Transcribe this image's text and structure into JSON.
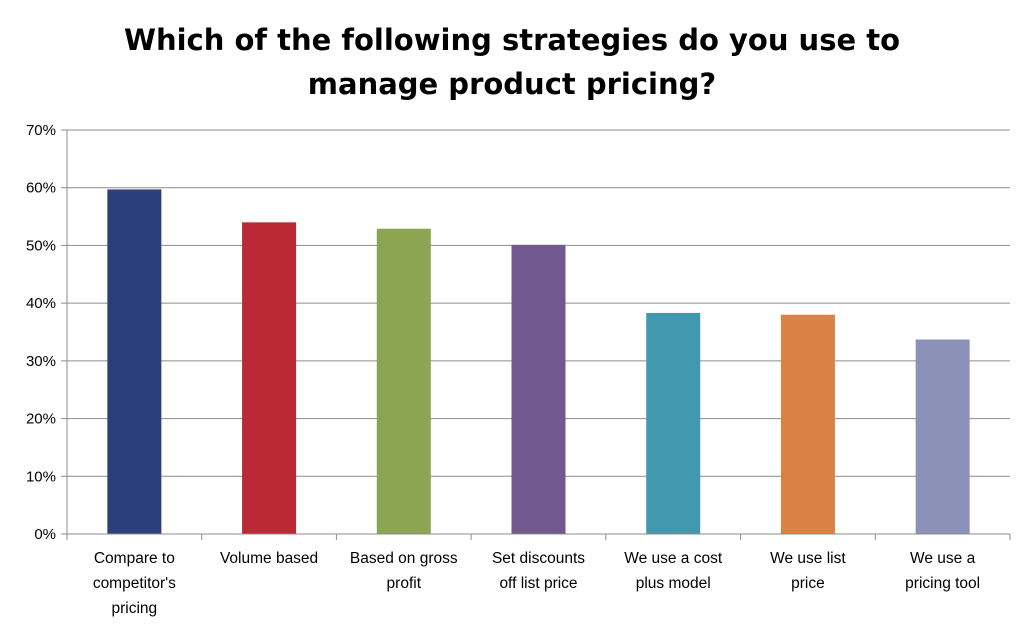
{
  "chart_data": {
    "type": "bar",
    "title": [
      "Which of the following strategies do you use to",
      "manage product pricing?"
    ],
    "xlabel": "",
    "ylabel": "",
    "ylim": [
      0,
      70
    ],
    "y_ticks": [
      "0%",
      "10%",
      "20%",
      "30%",
      "40%",
      "50%",
      "60%",
      "70%"
    ],
    "grid": true,
    "categories": [
      [
        "Compare to",
        "competitor's",
        "pricing"
      ],
      [
        "Volume based"
      ],
      [
        "Based on gross",
        "profit"
      ],
      [
        "Set discounts",
        "off list price"
      ],
      [
        "We use a cost",
        "plus model"
      ],
      [
        "We use list",
        "price"
      ],
      [
        "We use a",
        "pricing tool"
      ]
    ],
    "values": [
      59.7,
      54,
      52.9,
      50.1,
      38.3,
      38,
      33.7
    ],
    "colors": [
      "#2c3e7c",
      "#b92a35",
      "#8ba552",
      "#71588f",
      "#4298ae",
      "#da8243",
      "#8c92b7"
    ],
    "gridline_color": "#8c8c8c",
    "axis_color": "#8c8c8c"
  }
}
